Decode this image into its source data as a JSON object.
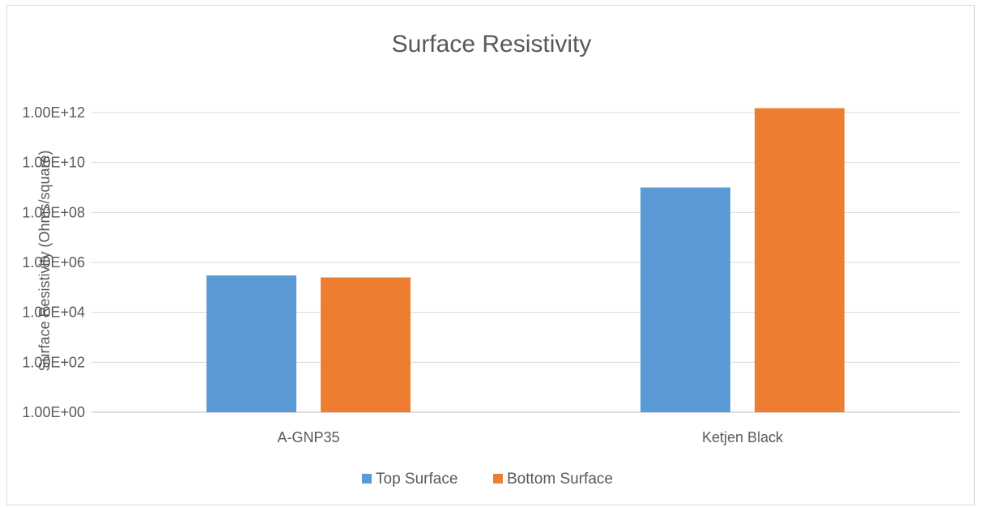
{
  "chart_data": {
    "type": "bar",
    "title": "Surface Resistivity",
    "xlabel": "",
    "ylabel": "Surface Resistivity (Ohms/square)",
    "y_scale": "log",
    "ylim": [
      1,
      1000000000000
    ],
    "y_ticks": [
      1,
      100,
      10000,
      1000000,
      100000000,
      10000000000,
      1000000000000
    ],
    "y_tick_labels": [
      "1.00E+00",
      "1.00E+02",
      "1.00E+04",
      "1.00E+06",
      "1.00E+08",
      "1.00E+10",
      "1.00E+12"
    ],
    "categories": [
      "A-GNP35",
      "Ketjen Black"
    ],
    "series": [
      {
        "name": "Top Surface",
        "color": "#5b9bd5",
        "values": [
          300000,
          1000000000
        ]
      },
      {
        "name": "Bottom Surface",
        "color": "#ed7d31",
        "values": [
          250000,
          1500000000000
        ]
      }
    ],
    "grid": true,
    "legend": "bottom-center"
  }
}
